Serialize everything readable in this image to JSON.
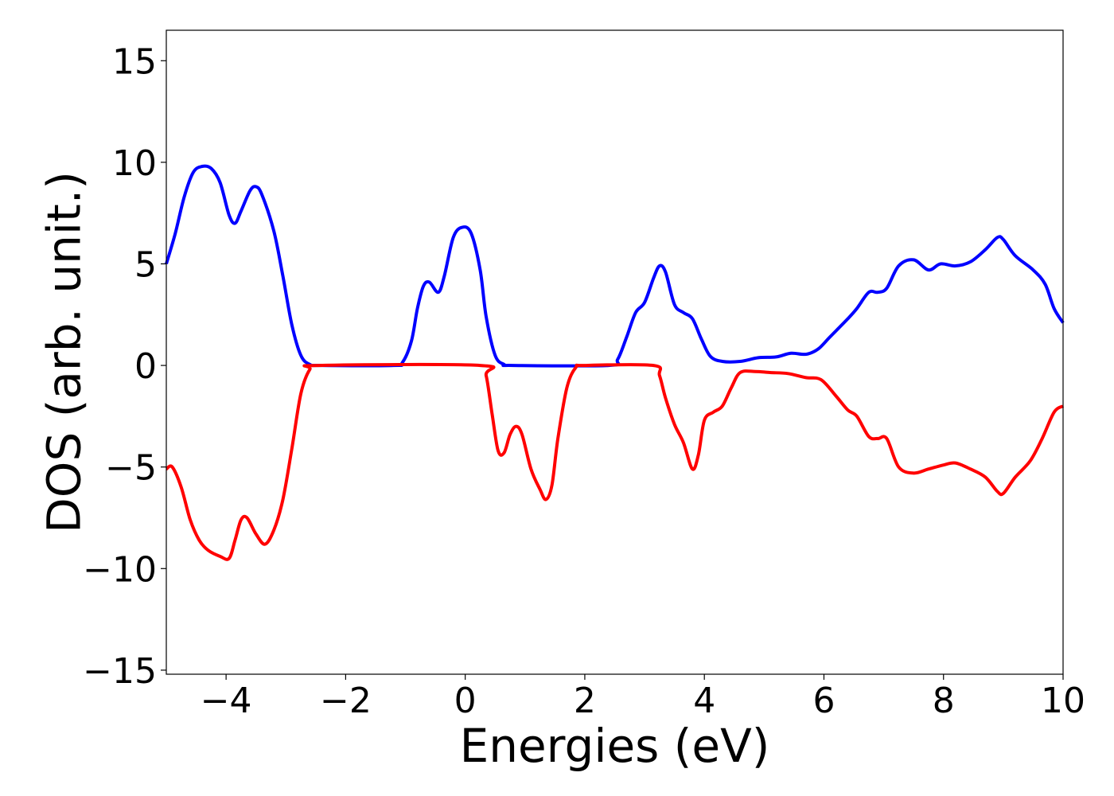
{
  "chart_data": {
    "type": "line",
    "title": "",
    "xlabel": "Energies (eV)",
    "ylabel": "DOS (arb. unit.)",
    "xlim": [
      -5,
      10
    ],
    "ylim": [
      -15.2,
      16.5
    ],
    "xticks": [
      -4,
      -2,
      0,
      2,
      4,
      6,
      8,
      10
    ],
    "xtick_labels": [
      "−4",
      "−2",
      "0",
      "2",
      "4",
      "6",
      "8",
      "10"
    ],
    "yticks": [
      -15,
      -10,
      -5,
      0,
      5,
      10,
      15
    ],
    "ytick_labels": [
      "−15",
      "−10",
      "−5",
      "0",
      "5",
      "10",
      "15"
    ],
    "grid": false,
    "legend": "none",
    "series": [
      {
        "color": "#0000ff",
        "points": [
          [
            -5.0,
            5.0
          ],
          [
            -4.85,
            6.5
          ],
          [
            -4.7,
            8.3
          ],
          [
            -4.55,
            9.5
          ],
          [
            -4.4,
            9.8
          ],
          [
            -4.25,
            9.7
          ],
          [
            -4.1,
            9.0
          ],
          [
            -3.95,
            7.4
          ],
          [
            -3.85,
            7.0
          ],
          [
            -3.75,
            7.6
          ],
          [
            -3.6,
            8.6
          ],
          [
            -3.5,
            8.8
          ],
          [
            -3.4,
            8.4
          ],
          [
            -3.2,
            6.6
          ],
          [
            -3.05,
            4.4
          ],
          [
            -2.9,
            2.0
          ],
          [
            -2.75,
            0.5
          ],
          [
            -2.6,
            0.05
          ],
          [
            -2.4,
            0.0
          ],
          [
            -1.2,
            0.0
          ],
          [
            -1.05,
            0.15
          ],
          [
            -0.9,
            1.2
          ],
          [
            -0.8,
            2.8
          ],
          [
            -0.7,
            3.9
          ],
          [
            -0.6,
            4.1
          ],
          [
            -0.45,
            3.6
          ],
          [
            -0.35,
            4.4
          ],
          [
            -0.2,
            6.3
          ],
          [
            -0.05,
            6.8
          ],
          [
            0.1,
            6.5
          ],
          [
            0.25,
            4.7
          ],
          [
            0.35,
            2.4
          ],
          [
            0.5,
            0.5
          ],
          [
            0.65,
            0.05
          ],
          [
            0.8,
            0.0
          ],
          [
            2.4,
            0.0
          ],
          [
            2.55,
            0.3
          ],
          [
            2.7,
            1.4
          ],
          [
            2.85,
            2.6
          ],
          [
            3.0,
            3.1
          ],
          [
            3.15,
            4.3
          ],
          [
            3.25,
            4.9
          ],
          [
            3.35,
            4.6
          ],
          [
            3.5,
            3.0
          ],
          [
            3.65,
            2.6
          ],
          [
            3.8,
            2.3
          ],
          [
            3.95,
            1.3
          ],
          [
            4.1,
            0.45
          ],
          [
            4.3,
            0.2
          ],
          [
            4.6,
            0.2
          ],
          [
            4.9,
            0.38
          ],
          [
            5.2,
            0.42
          ],
          [
            5.45,
            0.6
          ],
          [
            5.7,
            0.55
          ],
          [
            5.9,
            0.8
          ],
          [
            6.1,
            1.4
          ],
          [
            6.4,
            2.3
          ],
          [
            6.55,
            2.8
          ],
          [
            6.75,
            3.6
          ],
          [
            6.9,
            3.6
          ],
          [
            7.05,
            3.8
          ],
          [
            7.25,
            4.9
          ],
          [
            7.5,
            5.2
          ],
          [
            7.75,
            4.7
          ],
          [
            7.95,
            5.0
          ],
          [
            8.2,
            4.9
          ],
          [
            8.45,
            5.1
          ],
          [
            8.7,
            5.7
          ],
          [
            8.9,
            6.3
          ],
          [
            9.0,
            6.2
          ],
          [
            9.2,
            5.4
          ],
          [
            9.5,
            4.7
          ],
          [
            9.7,
            4.0
          ],
          [
            9.85,
            2.8
          ],
          [
            10.0,
            2.1
          ]
        ]
      },
      {
        "color": "#ff0000",
        "points": [
          [
            -5.0,
            -5.1
          ],
          [
            -4.9,
            -5.0
          ],
          [
            -4.75,
            -6.0
          ],
          [
            -4.6,
            -7.6
          ],
          [
            -4.45,
            -8.6
          ],
          [
            -4.3,
            -9.1
          ],
          [
            -4.1,
            -9.4
          ],
          [
            -3.95,
            -9.5
          ],
          [
            -3.85,
            -8.6
          ],
          [
            -3.75,
            -7.6
          ],
          [
            -3.65,
            -7.5
          ],
          [
            -3.5,
            -8.3
          ],
          [
            -3.35,
            -8.8
          ],
          [
            -3.2,
            -8.1
          ],
          [
            -3.05,
            -6.6
          ],
          [
            -2.9,
            -4.1
          ],
          [
            -2.75,
            -1.4
          ],
          [
            -2.6,
            -0.2
          ],
          [
            -2.45,
            0.0
          ],
          [
            0.25,
            0.0
          ],
          [
            0.35,
            -0.5
          ],
          [
            0.45,
            -2.4
          ],
          [
            0.55,
            -4.2
          ],
          [
            0.65,
            -4.3
          ],
          [
            0.75,
            -3.4
          ],
          [
            0.85,
            -3.0
          ],
          [
            0.95,
            -3.4
          ],
          [
            1.1,
            -5.1
          ],
          [
            1.25,
            -6.1
          ],
          [
            1.35,
            -6.6
          ],
          [
            1.45,
            -5.9
          ],
          [
            1.55,
            -3.6
          ],
          [
            1.7,
            -1.1
          ],
          [
            1.85,
            -0.1
          ],
          [
            2.0,
            0.0
          ],
          [
            3.15,
            0.0
          ],
          [
            3.25,
            -0.5
          ],
          [
            3.35,
            -1.6
          ],
          [
            3.5,
            -2.9
          ],
          [
            3.65,
            -3.8
          ],
          [
            3.8,
            -5.1
          ],
          [
            3.9,
            -4.4
          ],
          [
            4.0,
            -2.7
          ],
          [
            4.15,
            -2.3
          ],
          [
            4.3,
            -2.0
          ],
          [
            4.45,
            -1.1
          ],
          [
            4.6,
            -0.35
          ],
          [
            4.85,
            -0.3
          ],
          [
            5.1,
            -0.35
          ],
          [
            5.4,
            -0.4
          ],
          [
            5.7,
            -0.6
          ],
          [
            5.95,
            -0.7
          ],
          [
            6.2,
            -1.5
          ],
          [
            6.4,
            -2.2
          ],
          [
            6.55,
            -2.5
          ],
          [
            6.75,
            -3.5
          ],
          [
            6.9,
            -3.6
          ],
          [
            7.05,
            -3.6
          ],
          [
            7.25,
            -5.0
          ],
          [
            7.5,
            -5.3
          ],
          [
            7.75,
            -5.1
          ],
          [
            8.0,
            -4.9
          ],
          [
            8.2,
            -4.8
          ],
          [
            8.45,
            -5.1
          ],
          [
            8.7,
            -5.5
          ],
          [
            8.9,
            -6.2
          ],
          [
            9.0,
            -6.3
          ],
          [
            9.2,
            -5.5
          ],
          [
            9.45,
            -4.7
          ],
          [
            9.65,
            -3.6
          ],
          [
            9.85,
            -2.3
          ],
          [
            10.0,
            -2.0
          ]
        ]
      }
    ]
  }
}
